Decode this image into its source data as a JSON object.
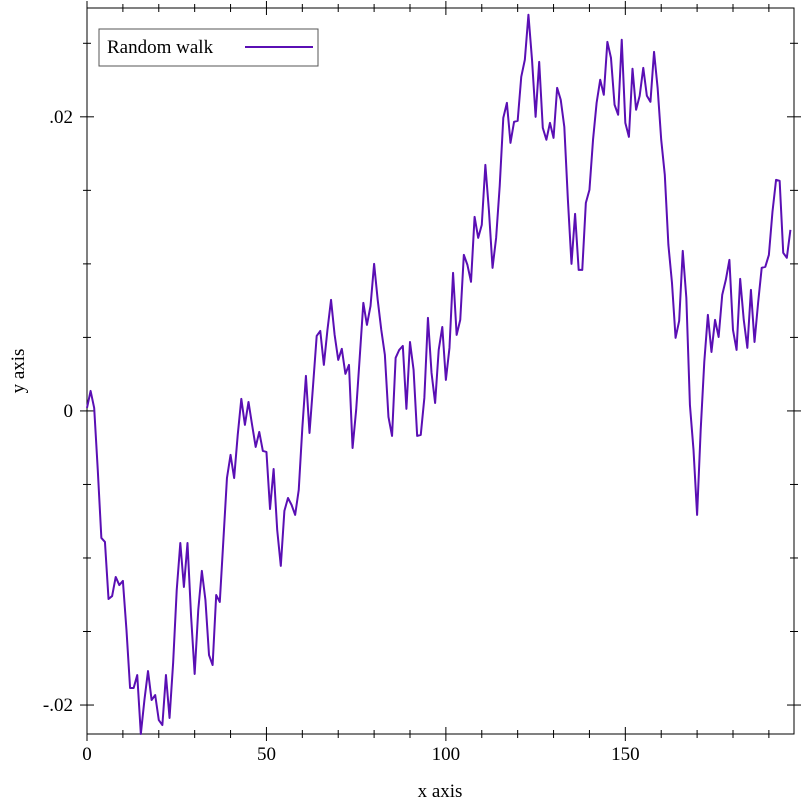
{
  "chart_data": {
    "type": "line",
    "xlabel": "x axis",
    "ylabel": "y axis",
    "x": [
      0,
      1,
      2,
      3,
      4,
      5,
      6,
      7,
      8,
      9,
      10,
      11,
      12,
      13,
      14,
      15,
      16,
      17,
      18,
      19,
      20,
      21,
      22,
      23,
      24,
      25,
      26,
      27,
      28,
      29,
      30,
      31,
      32,
      33,
      34,
      35,
      36,
      37,
      38,
      39,
      40,
      41,
      42,
      43,
      44,
      45,
      46,
      47,
      48,
      49,
      50,
      51,
      52,
      53,
      54,
      55,
      56,
      57,
      58,
      59,
      60,
      61,
      62,
      63,
      64,
      65,
      66,
      67,
      68,
      69,
      70,
      71,
      72,
      73,
      74,
      75,
      76,
      77,
      78,
      79,
      80,
      81,
      82,
      83,
      84,
      85,
      86,
      87,
      88,
      89,
      90,
      91,
      92,
      93,
      94,
      95,
      96,
      97,
      98,
      99,
      100,
      101,
      102,
      103,
      104,
      105,
      106,
      107,
      108,
      109,
      110,
      111,
      112,
      113,
      114,
      115,
      116,
      117,
      118,
      119,
      120,
      121,
      122,
      123,
      124,
      125,
      126,
      127,
      128,
      129,
      130,
      131,
      132,
      133,
      134,
      135,
      136,
      137,
      138,
      139,
      140,
      141,
      142,
      143,
      144,
      145,
      146,
      147,
      148,
      149,
      150,
      151,
      152,
      153,
      154,
      155,
      156,
      157,
      158,
      159,
      160,
      161,
      162,
      163,
      164,
      165,
      166,
      167,
      168,
      169,
      170,
      171,
      172,
      173,
      174,
      175,
      176,
      177,
      178,
      179,
      180,
      181,
      182,
      183,
      184,
      185,
      186,
      187,
      188,
      189,
      190,
      191,
      192,
      193,
      194,
      195,
      196
    ],
    "series": [
      {
        "name": "Random walk",
        "color": "#5a0fb4",
        "values": [
          0.0002,
          0.00136,
          0.0002,
          -0.00401,
          -0.00864,
          -0.00891,
          -0.01279,
          -0.01259,
          -0.01129,
          -0.01184,
          -0.01156,
          -0.0149,
          -0.01884,
          -0.01884,
          -0.01796,
          -0.02197,
          -0.01966,
          -0.01769,
          -0.01966,
          -0.01932,
          -0.02102,
          -0.02136,
          -0.01796,
          -0.02088,
          -0.01714,
          -0.01218,
          -0.00898,
          -0.01197,
          -0.00898,
          -0.01395,
          -0.01789,
          -0.01354,
          -0.01088,
          -0.01286,
          -0.0166,
          -0.01728,
          -0.01252,
          -0.01299,
          -0.00878,
          -0.00456,
          -0.00299,
          -0.00456,
          -0.00163,
          0.00082,
          -0.00095,
          0.00061,
          -0.00095,
          -0.00245,
          -0.00143,
          -0.00272,
          -0.00279,
          -0.00667,
          -0.00395,
          -0.0081,
          -0.01054,
          -0.0068,
          -0.00592,
          -0.00639,
          -0.00707,
          -0.00537,
          -0.00116,
          0.00238,
          -0.0015,
          0.00177,
          0.0051,
          0.00544,
          0.00313,
          0.00551,
          0.00755,
          0.00517,
          0.00347,
          0.00422,
          0.00252,
          0.00313,
          -0.00252,
          7e-05,
          0.00367,
          0.00735,
          0.00585,
          0.00714,
          0.01,
          0.00755,
          0.00551,
          0.00381,
          -0.00041,
          -0.0017,
          0.00361,
          0.00415,
          0.00442,
          0.00014,
          0.00469,
          0.00279,
          -0.0017,
          -0.00163,
          0.00088,
          0.00633,
          0.00259,
          0.00054,
          0.00415,
          0.00571,
          0.00211,
          0.00429,
          0.00939,
          0.00517,
          0.00619,
          0.01061,
          0.00993,
          0.00878,
          0.0132,
          0.01177,
          0.01265,
          0.01673,
          0.01361,
          0.00973,
          0.01177,
          0.01531,
          0.01993,
          0.02095,
          0.01823,
          0.01966,
          0.01973,
          0.02272,
          0.02388,
          0.02694,
          0.02388,
          0.02,
          0.02374,
          0.01925,
          0.01844,
          0.01959,
          0.01857,
          0.02197,
          0.02116,
          0.01932,
          0.01435,
          0.01,
          0.0134,
          0.00959,
          0.00959,
          0.01415,
          0.01503,
          0.01844,
          0.02095,
          0.02252,
          0.0215,
          0.0251,
          0.02401,
          0.02082,
          0.02014,
          0.02524,
          0.01959,
          0.01864,
          0.02327,
          0.02048,
          0.02143,
          0.02333,
          0.02143,
          0.02102,
          0.02442,
          0.02197,
          0.01844,
          0.01605,
          0.01129,
          0.00871,
          0.00497,
          0.00612,
          0.01088,
          0.00769,
          0.00041,
          -0.00265,
          -0.00707,
          -0.00129,
          0.00333,
          0.00653,
          0.00401,
          0.00619,
          0.00503,
          0.00789,
          0.00891,
          0.01027,
          0.00551,
          0.00415,
          0.00898,
          0.00619,
          0.00429,
          0.00823,
          0.00469,
          0.00735,
          0.00973,
          0.0098,
          0.01061,
          0.01354,
          0.01571,
          0.01565,
          0.01075,
          0.01041,
          0.01231
        ]
      }
    ],
    "xlim": [
      0,
      197
    ],
    "ylim": [
      -0.02197,
      0.0274
    ],
    "xticks": [
      0,
      50,
      100,
      150
    ],
    "x_minor_ticks": [
      10,
      20,
      30,
      40,
      60,
      70,
      80,
      90,
      110,
      120,
      130,
      140,
      160,
      170,
      180,
      190
    ],
    "yticks": [
      {
        "value": -0.02,
        "label": "-.02"
      },
      0,
      {
        "value": 0.02,
        "label": ".02"
      }
    ],
    "y_minor_ticks": [
      -0.015,
      -0.01,
      -0.005,
      0.005,
      0.01,
      0.015,
      0.025
    ],
    "legend": "top-left"
  }
}
